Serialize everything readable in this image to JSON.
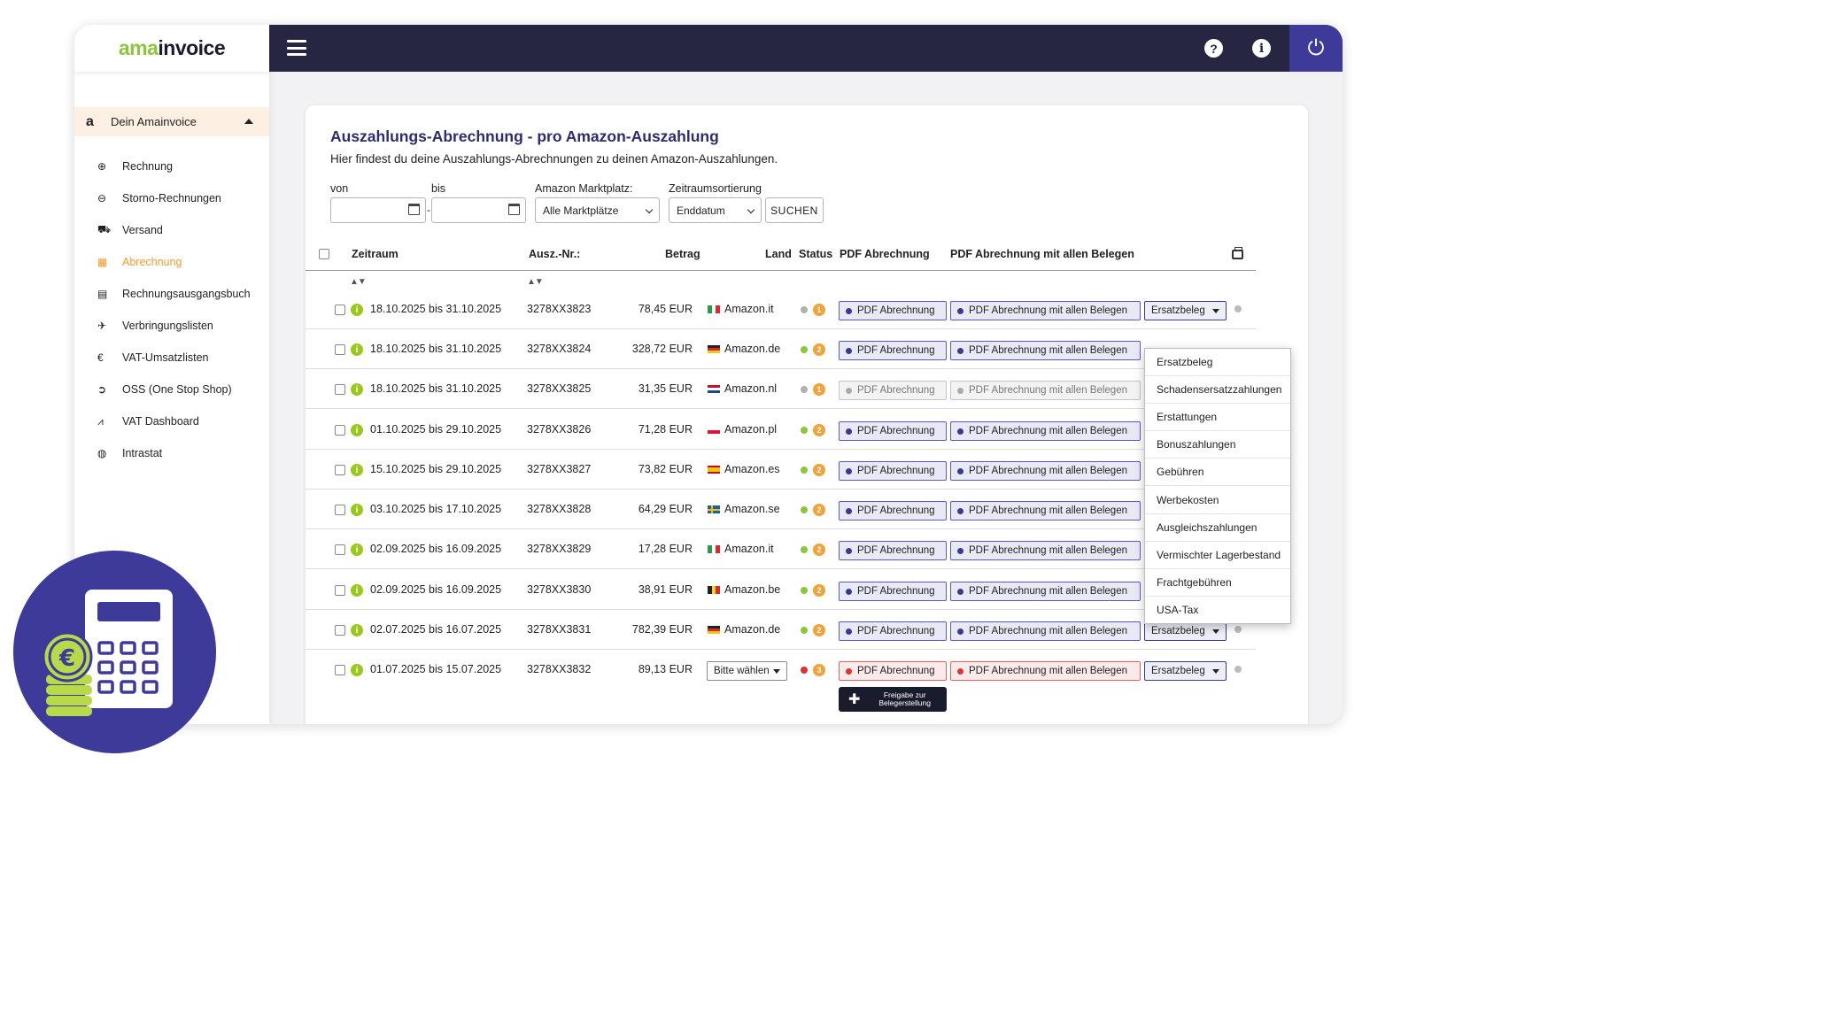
{
  "app": {
    "logo_part1": "ama",
    "logo_part2": "invoice"
  },
  "sidebar": {
    "section_label": "Dein Amainvoice",
    "section_icon": "a",
    "items": [
      {
        "label": "Rechnung",
        "icon": "plus-circle-icon",
        "glyph": "⊕",
        "active": false
      },
      {
        "label": "Storno-Rechnungen",
        "icon": "minus-circle-icon",
        "glyph": "⊖",
        "active": false
      },
      {
        "label": "Versand",
        "icon": "truck-icon",
        "glyph": "⛟",
        "active": false
      },
      {
        "label": "Abrechnung",
        "icon": "table-icon",
        "glyph": "▦",
        "active": true
      },
      {
        "label": "Rechnungsausgangsbuch",
        "icon": "book-icon",
        "glyph": "▤",
        "active": false
      },
      {
        "label": "Verbringungslisten",
        "icon": "plane-icon",
        "glyph": "✈",
        "active": false
      },
      {
        "label": "VAT-Umsatzlisten",
        "icon": "euro-icon",
        "glyph": "€",
        "active": false
      },
      {
        "label": "OSS (One Stop Shop)",
        "icon": "arrow-circle-icon",
        "glyph": "➲",
        "active": false
      },
      {
        "label": "VAT Dashboard",
        "icon": "chart-icon",
        "glyph": "⩘",
        "active": false
      },
      {
        "label": "Intrastat",
        "icon": "globe-icon",
        "glyph": "◍",
        "active": false
      }
    ]
  },
  "topbar": {
    "help_glyph": "?",
    "info_glyph": "i",
    "power_glyph": "⏻"
  },
  "page": {
    "title": "Auszahlungs-Abrechnung - pro Amazon-Auszahlung",
    "subtitle": "Hier findest du deine Auszahlungs-Abrechnungen zu deinen Amazon-Auszahlungen."
  },
  "filters": {
    "from_label": "von",
    "to_label": "bis",
    "from_value": "",
    "to_value": "",
    "separator": "-",
    "marketplace_label": "Amazon Marktplatz:",
    "marketplace_value": "Alle Marktplätze",
    "sort_label": "Zeitraumsortierung",
    "sort_value": "Enddatum",
    "search_button": "SUCHEN"
  },
  "table": {
    "headers": {
      "zeitraum": "Zeitraum",
      "ausz_nr": "Ausz.-Nr.:",
      "betrag": "Betrag",
      "land": "Land",
      "status": "Status",
      "pdf": "PDF Abrechnung",
      "pdf_all": "PDF Abrechnung mit allen Belegen"
    },
    "sort_glyph": "▲▼",
    "pdf_label": "PDF Abrechnung",
    "pdf_all_label": "PDF Abrechnung mit allen Belegen",
    "rows": [
      {
        "period": "18.10.2025 bis 31.10.2025",
        "nr": "3278XX3823",
        "amount": "78,45 EUR",
        "market": "Amazon.it",
        "flag": "it",
        "dot": "#b0b0b0",
        "badge": "1",
        "pdf_state": "normal",
        "select": "Ersatzbeleg"
      },
      {
        "period": "18.10.2025 bis 31.10.2025",
        "nr": "3278XX3824",
        "amount": "328,72 EUR",
        "market": "Amazon.de",
        "flag": "de",
        "dot": "#8cc63f",
        "badge": "2",
        "pdf_state": "normal",
        "select": ""
      },
      {
        "period": "18.10.2025 bis 31.10.2025",
        "nr": "3278XX3825",
        "amount": "31,35 EUR",
        "market": "Amazon.nl",
        "flag": "nl",
        "dot": "#b0b0b0",
        "badge": "1",
        "pdf_state": "disabled",
        "select": ""
      },
      {
        "period": "01.10.2025 bis 29.10.2025",
        "nr": "3278XX3826",
        "amount": "71,28 EUR",
        "market": "Amazon.pl",
        "flag": "pl",
        "dot": "#8cc63f",
        "badge": "2",
        "pdf_state": "normal",
        "select": ""
      },
      {
        "period": "15.10.2025 bis 29.10.2025",
        "nr": "3278XX3827",
        "amount": "73,82 EUR",
        "market": "Amazon.es",
        "flag": "es",
        "dot": "#8cc63f",
        "badge": "2",
        "pdf_state": "normal",
        "select": ""
      },
      {
        "period": "03.10.2025 bis 17.10.2025",
        "nr": "3278XX3828",
        "amount": "64,29 EUR",
        "market": "Amazon.se",
        "flag": "se",
        "dot": "#8cc63f",
        "badge": "2",
        "pdf_state": "normal",
        "select": ""
      },
      {
        "period": "02.09.2025 bis 16.09.2025",
        "nr": "3278XX3829",
        "amount": "17,28 EUR",
        "market": "Amazon.it",
        "flag": "it",
        "dot": "#8cc63f",
        "badge": "2",
        "pdf_state": "normal",
        "select": ""
      },
      {
        "period": "02.09.2025 bis 16.09.2025",
        "nr": "3278XX3830",
        "amount": "38,91 EUR",
        "market": "Amazon.be",
        "flag": "be",
        "dot": "#8cc63f",
        "badge": "2",
        "pdf_state": "normal",
        "select": ""
      },
      {
        "period": "02.07.2025 bis 16.07.2025",
        "nr": "3278XX3831",
        "amount": "782,39 EUR",
        "market": "Amazon.de",
        "flag": "de",
        "dot": "#8cc63f",
        "badge": "2",
        "pdf_state": "normal",
        "select": "Ersatzbeleg"
      },
      {
        "period": "01.07.2025 bis 15.07.2025",
        "nr": "3278XX3832",
        "amount": "89,13 EUR",
        "market": "",
        "flag": "",
        "market_select": "Bitte wählen",
        "dot": "#e03030",
        "badge": "3",
        "pdf_state": "error",
        "select": "Ersatzbeleg",
        "release_button": "Freigabe zur Belegerstellung"
      }
    ]
  },
  "dropdown_menu": {
    "options": [
      "Ersatzbeleg",
      "Schadensersatzzahlungen",
      "Erstattungen",
      "Bonuszahlungen",
      "Gebühren",
      "Werbekosten",
      "Ausgleichszahlungen",
      "Vermischter Lagerbestand",
      "Frachtgebühren",
      "USA-Tax"
    ]
  },
  "colors": {
    "navy": "#262642",
    "accent_purple": "#3d3a9a",
    "brand_green": "#8cc63f",
    "active_orange": "#f29a2e",
    "badge_orange": "#f2a23a"
  }
}
